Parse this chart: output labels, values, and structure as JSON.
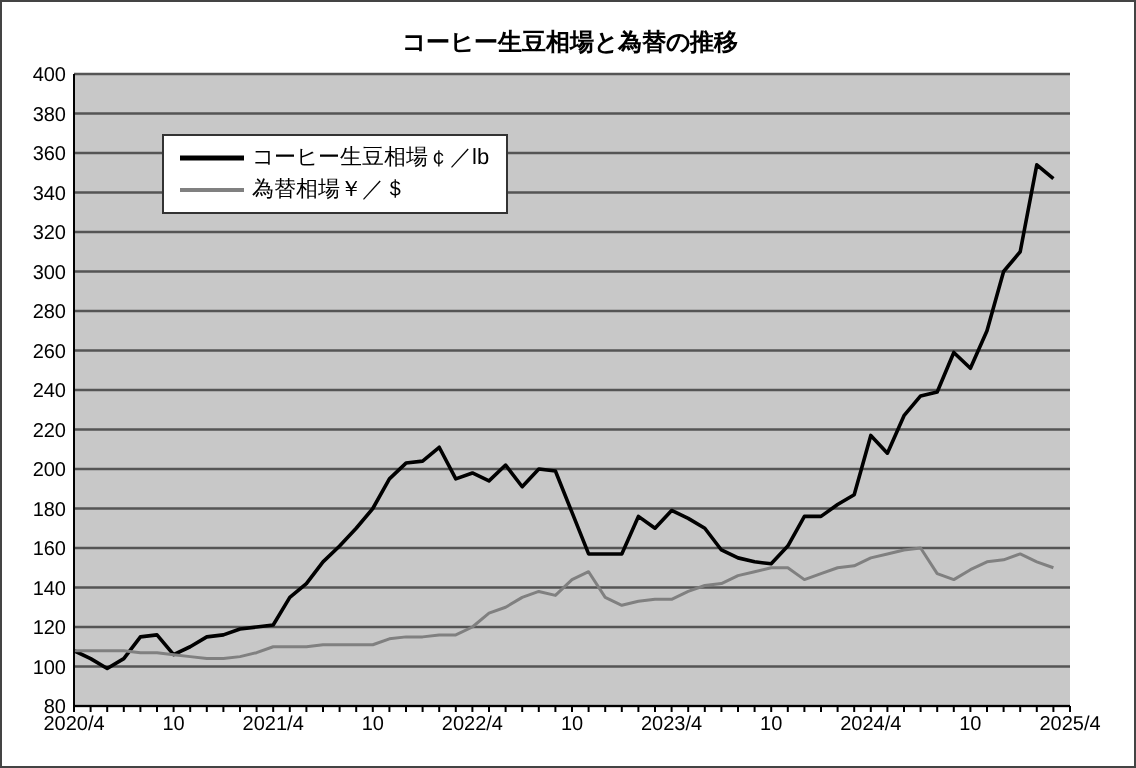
{
  "chart_data": {
    "type": "line",
    "title": "コーヒー生豆相場と為替の推移",
    "categories": [
      "2020/4",
      null,
      null,
      null,
      null,
      null,
      "10",
      null,
      null,
      null,
      null,
      null,
      "2021/4",
      null,
      null,
      null,
      null,
      null,
      "10",
      null,
      null,
      null,
      null,
      null,
      "2022/4",
      null,
      null,
      null,
      null,
      null,
      "10",
      null,
      null,
      null,
      null,
      null,
      "2023/4",
      null,
      null,
      null,
      null,
      null,
      "10",
      null,
      null,
      null,
      null,
      null,
      "2024/4",
      null,
      null,
      null,
      null,
      null,
      "10",
      null,
      null,
      null,
      null,
      null,
      "2025/4"
    ],
    "series": [
      {
        "name": "コーヒー生豆相場￠／lb",
        "color": "#000000",
        "values": [
          108,
          104,
          99,
          104,
          115,
          116,
          106,
          110,
          115,
          116,
          119,
          120,
          121,
          135,
          142,
          153,
          161,
          170,
          180,
          195,
          203,
          204,
          211,
          195,
          198,
          194,
          202,
          191,
          200,
          199,
          178,
          157,
          157,
          157,
          176,
          170,
          179,
          175,
          170,
          159,
          155,
          153,
          152,
          161,
          176,
          176,
          182,
          187,
          217,
          208,
          227,
          237,
          239,
          259,
          251,
          270,
          300,
          310,
          354,
          347,
          null
        ]
      },
      {
        "name": "為替相場￥／＄",
        "color": "#808080",
        "values": [
          108,
          108,
          108,
          108,
          107,
          107,
          106,
          105,
          104,
          104,
          105,
          107,
          110,
          110,
          110,
          111,
          111,
          111,
          111,
          114,
          115,
          115,
          116,
          116,
          120,
          127,
          130,
          135,
          138,
          136,
          144,
          148,
          135,
          131,
          133,
          134,
          134,
          138,
          141,
          142,
          146,
          148,
          150,
          150,
          144,
          147,
          150,
          151,
          155,
          157,
          159,
          160,
          147,
          144,
          149,
          153,
          154,
          157,
          153,
          150,
          null
        ]
      }
    ],
    "ylim": [
      80,
      400
    ],
    "yticks": [
      80,
      100,
      120,
      140,
      160,
      180,
      200,
      220,
      240,
      260,
      280,
      300,
      320,
      340,
      360,
      380,
      400
    ],
    "grid": "y",
    "legend": "top left",
    "marker": "none",
    "line_style": "solid"
  }
}
